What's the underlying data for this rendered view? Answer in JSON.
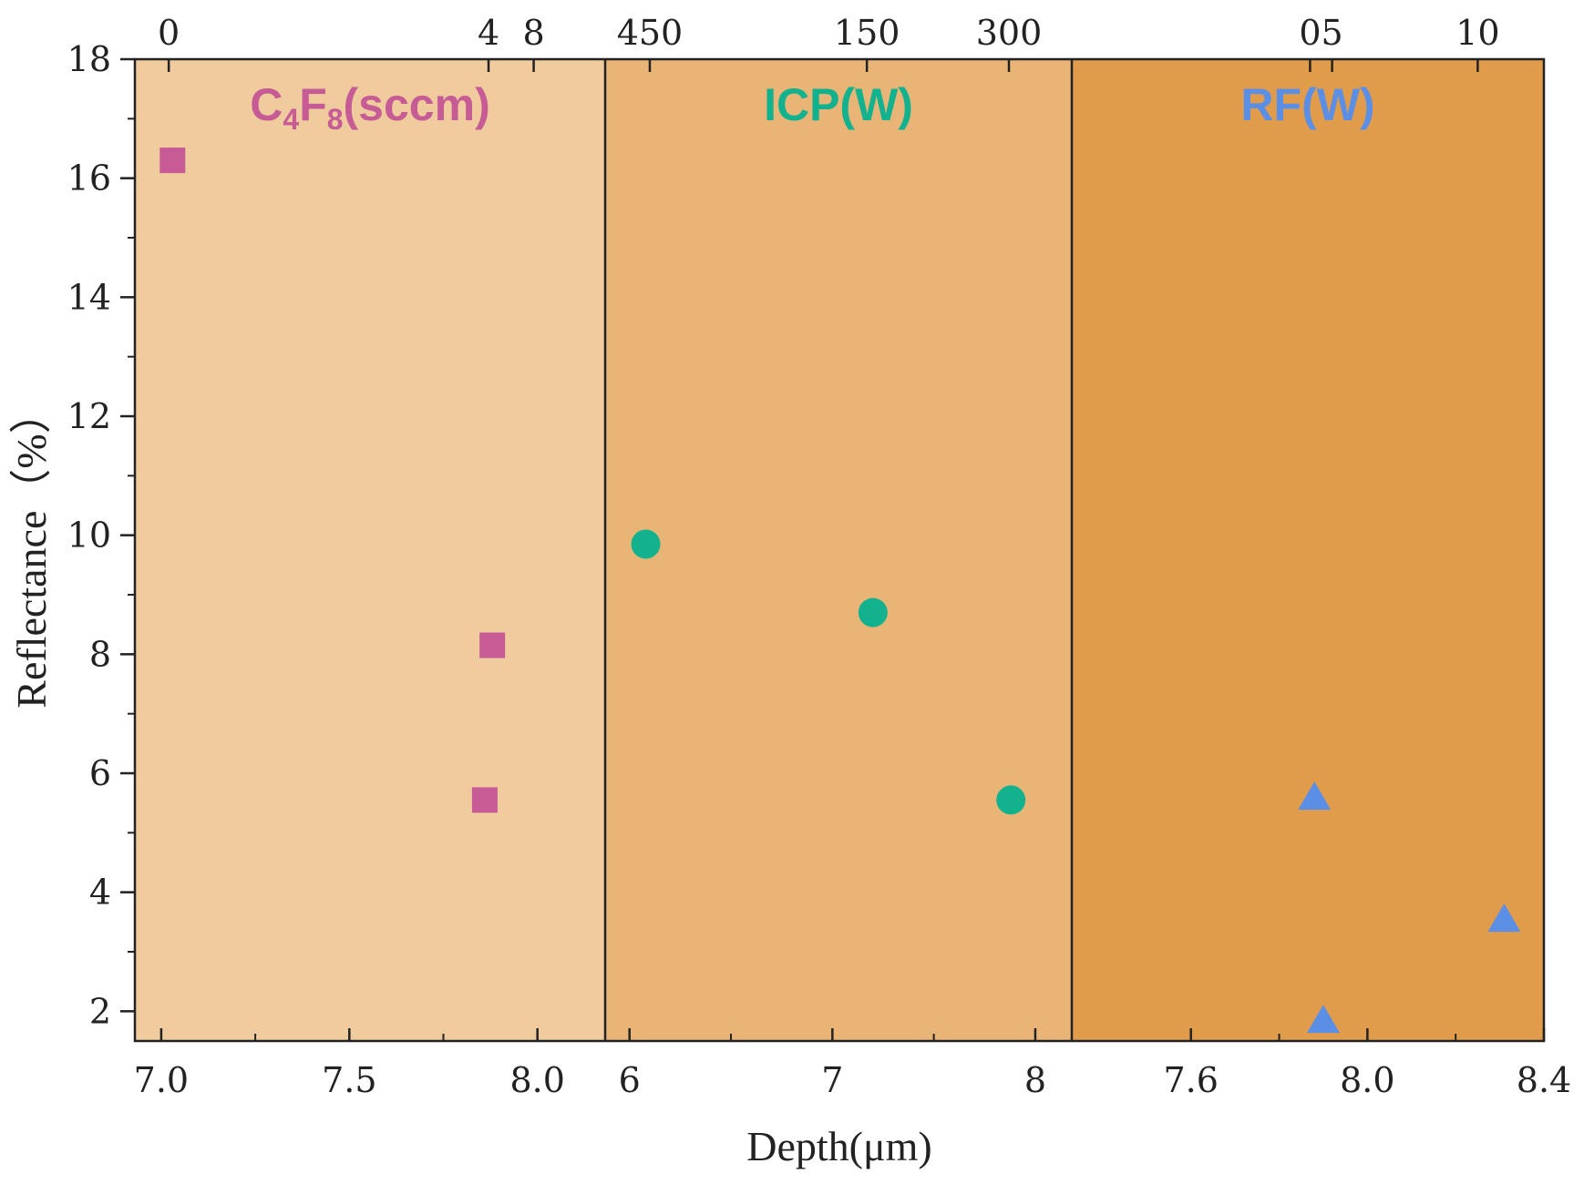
{
  "chart_data": {
    "type": "scatter",
    "ylabel": "Reflectance（%）",
    "xlabel": "Depth(μm)",
    "ylim": [
      1.5,
      18
    ],
    "yticks": [
      2,
      4,
      6,
      8,
      10,
      12,
      14,
      16,
      18
    ],
    "panels": [
      {
        "title_main": "C",
        "title_sub1": "4",
        "title_mid": "F",
        "title_sub2": "8",
        "title_tail": "(sccm)",
        "title_color": "#c65b95",
        "background": "#efcb9e",
        "marker": "square",
        "marker_color": "#c65b95",
        "xlim": [
          6.93,
          8.18
        ],
        "bottom_ticks": [
          {
            "value": 7.0,
            "label": "7.0"
          },
          {
            "value": 7.5,
            "label": "7.5"
          },
          {
            "value": 8.0,
            "label": "8.0"
          }
        ],
        "top_ticks": [
          {
            "value": 7.02,
            "label": "0"
          },
          {
            "value": 7.87,
            "label": "4"
          },
          {
            "value": 7.99,
            "label": "8"
          }
        ],
        "points": [
          {
            "x": 7.03,
            "y": 16.3
          },
          {
            "x": 7.88,
            "y": 8.15
          },
          {
            "x": 7.86,
            "y": 5.55
          }
        ]
      },
      {
        "title": "ICP(W)",
        "title_color": "#12b28f",
        "background": "#e8b577",
        "marker": "circle",
        "marker_color": "#12b28f",
        "xlim": [
          5.88,
          8.18
        ],
        "bottom_ticks": [
          {
            "value": 6,
            "label": "6"
          },
          {
            "value": 7,
            "label": "7"
          },
          {
            "value": 8,
            "label": "8"
          }
        ],
        "top_ticks": [
          {
            "value": 6.1,
            "label": "450"
          },
          {
            "value": 7.17,
            "label": "150"
          },
          {
            "value": 7.87,
            "label": "300"
          }
        ],
        "points": [
          {
            "x": 6.08,
            "y": 9.85
          },
          {
            "x": 7.2,
            "y": 8.7
          },
          {
            "x": 7.88,
            "y": 5.55
          }
        ]
      },
      {
        "title": "RF(W)",
        "title_color": "#5b8fe6",
        "background": "#e19c4b",
        "marker": "triangle",
        "marker_color": "#5b8fe6",
        "xlim": [
          7.33,
          8.4
        ],
        "bottom_ticks": [
          {
            "value": 7.6,
            "label": "7.6"
          },
          {
            "value": 8.0,
            "label": "8.0"
          },
          {
            "value": 8.4,
            "label": "8.4"
          }
        ],
        "top_ticks": [
          {
            "value": 7.87,
            "label": "0"
          },
          {
            "value": 7.92,
            "label": "5"
          },
          {
            "value": 8.25,
            "label": "10"
          }
        ],
        "points": [
          {
            "x": 7.88,
            "y": 5.6
          },
          {
            "x": 8.31,
            "y": 3.55
          },
          {
            "x": 7.9,
            "y": 1.85
          }
        ]
      }
    ]
  }
}
